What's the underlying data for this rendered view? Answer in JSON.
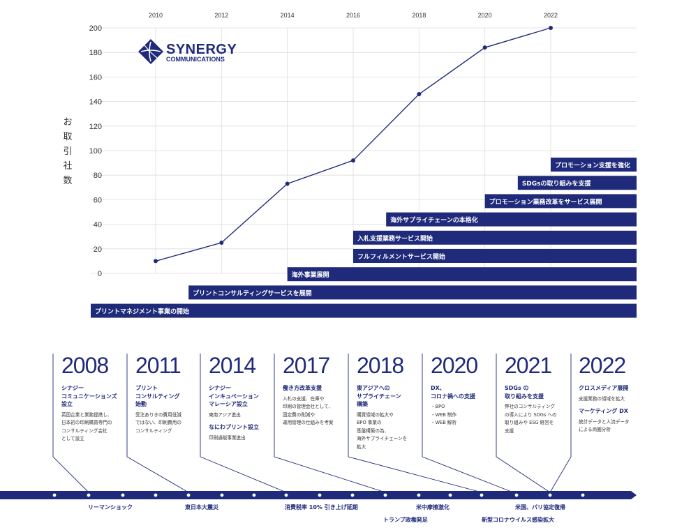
{
  "chart_data": {
    "type": "line",
    "ylabel": "お取引社数",
    "x": [
      "2010",
      "2012",
      "2014",
      "2016",
      "2018",
      "2020",
      "2022"
    ],
    "x_ticks": [
      "2010",
      "2012",
      "2014",
      "2016",
      "2018",
      "2020",
      "2022"
    ],
    "y_ticks": [
      0,
      20,
      40,
      60,
      80,
      100,
      120,
      140,
      160,
      180,
      200
    ],
    "ylim": [
      0,
      200
    ],
    "series": [
      {
        "values": [
          10,
          25,
          73,
          92,
          146,
          184,
          200
        ]
      }
    ],
    "grid": true,
    "line_color": "#1f2a7a",
    "bar_color": "#1f2a7a"
  },
  "logo": {
    "name": "SYNERGY",
    "sub": "COMMUNICATIONS"
  },
  "milestones": [
    {
      "label": "プロモーション支援を強化",
      "start_year": 2022
    },
    {
      "label": "SDGsの取り組みを支援",
      "start_year": 2021
    },
    {
      "label": "プロモーション業務改革をサービス展開",
      "start_year": 2020
    },
    {
      "label": "海外サプライチェーンの本格化",
      "start_year": 2017
    },
    {
      "label": "入札支援業務サービス開始",
      "start_year": 2016
    },
    {
      "label": "フルフィルメントサービス開始",
      "start_year": 2016
    },
    {
      "label": "海外事業展開",
      "start_year": 2014
    },
    {
      "label": "プリントコンサルティングサービスを展開",
      "start_year": 2011
    },
    {
      "label": "プリントマネジメント事業の開始",
      "start_year": 2008
    }
  ],
  "history": [
    {
      "year": "2008",
      "head": "シナジー\nコミュニケーションズ\n設立",
      "body": "英国企業と業務提携し、\n日本初の印刷購買専門の\nコンサルティング会社\nとして設立"
    },
    {
      "year": "2011",
      "head": "プリント\nコンサルティング\n始動",
      "body": "受注ありきの費用低減\nではない、印刷費用の\nコンサルティング"
    },
    {
      "year": "2014",
      "head": "シナジー\nインキュベーション\nマレーシア設立",
      "body": "東南アジア進出",
      "head2": "なにわプリント設立",
      "body2": "印刷通販事業進出"
    },
    {
      "year": "2017",
      "head": "働き方改革支援",
      "body": "入札の支援、在庫や\n印刷の管理会社として、\n固定費の削減や\n運用管理の仕組みを考案"
    },
    {
      "year": "2018",
      "head": "東アジアへの\nサプライチェーン\n構築",
      "body": "購買領域の拡大や\nBPO 事業の\n基盤構築の為、\n海外サプライチェーンを\n拡大"
    },
    {
      "year": "2020",
      "head": "DX、\nコロナ禍への支援",
      "body": "・BPO\n・WEB 制作\n・WEB 解析"
    },
    {
      "year": "2021",
      "head": "SDGs の\n取り組みを支援",
      "body": "弊社のコンサルティング\nの導入により SDGs への\n取り組みや ESG 経営を\n支援"
    },
    {
      "year": "2022",
      "head": "クロスメディア展開",
      "body": "支援業務の領域を拡大",
      "head2": "マーケティング DX",
      "body2": "統計データと人流データ\nによる商圏分析"
    }
  ],
  "events": [
    {
      "label": "リーマンショック"
    },
    {
      "label": "東日本大震災"
    },
    {
      "label": "消費税率 10% 引き上げ延期"
    },
    {
      "label": "米中摩擦激化"
    },
    {
      "label": "トランプ政権発足"
    },
    {
      "label": "米国、パリ協定復帰"
    },
    {
      "label": "新型コロナウイルス感染拡大"
    }
  ]
}
